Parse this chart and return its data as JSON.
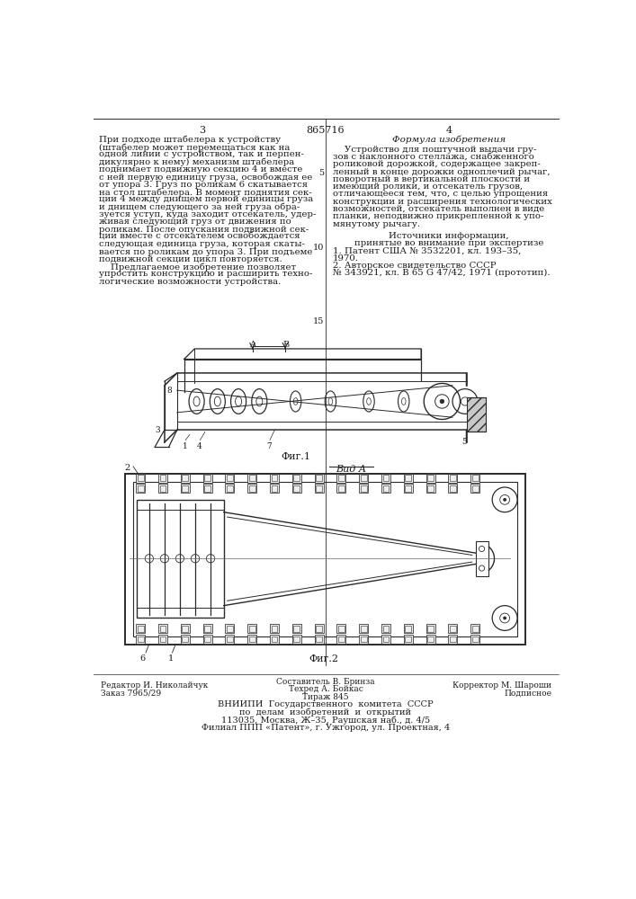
{
  "page_width": 7.07,
  "page_height": 10.0,
  "bg_color": "#ffffff",
  "patent_number": "865716",
  "page_left": "3",
  "page_right": "4",
  "left_column_text": [
    "При подходе штабелера к устройству",
    "(штабелер может перемещаться как на",
    "одной линии с устройством, так и перпен-",
    "дикулярно к нему) механизм штабелера",
    "поднимает подвижную секцию 4 и вместе",
    "с ней первую единицу груза, освобождая ее",
    "от упора 3. Груз по роликам 6 скатывается",
    "на стол штабелера. В момент поднятия сек-",
    "ции 4 между днищем первой единицы груза",
    "и днищем следующего за ней груза обра-",
    "зуется уступ, куда заходит отсекатель, удер-",
    "живая следующий груз от движения по",
    "роликам. После опускания подвижной сек-",
    "ции вместе с отсекателем освобождается",
    "следующая единица груза, которая скаты-",
    "вается по роликам до упора 3. При подъеме",
    "подвижной секции цикл повторяется.",
    "    Предлагаемое изобретение позволяет",
    "упростить конструкцию и расширить техно-",
    "логические возможности устройства."
  ],
  "right_column_header": "Формула изобретения",
  "right_column_text": [
    "    Устройство для поштучной выдачи гру-",
    "зов с наклонного стеллажа, снабженного",
    "роликовой дорожкой, содержащее закреп-",
    "ленный в конце дорожки одноплечий рычаг,",
    "поворотный в вертикальной плоскости и",
    "имеющий ролики, и отсекатель грузов,",
    "отличающееся тем, что, с целью упрощения",
    "конструкции и расширения технологических",
    "возможностей, отсекатель выполнен в виде",
    "планки, неподвижно прикрепленной к упо-",
    "мянутому рычагу."
  ],
  "sources_header": "Источники информации,",
  "sources_subheader": "принятые во внимание при экспертизе",
  "source1": "1. Патент США № 3532201, кл. 193–35,",
  "source1b": "1970.",
  "source2": "2. Авторское свидетельство СССР",
  "source2b": "№ 343921, кл. В 65 G 47/42, 1971 (прототип).",
  "fig1_caption": "Фиг.1",
  "fig2_caption": "Фиг.2",
  "vid_a_label": "Вид А",
  "line_number_5": "5",
  "line_number_10": "10",
  "line_number_15": "15",
  "footer_left1": "Редактор И. Николайчук",
  "footer_left2": "Заказ 7965/29",
  "footer_center1": "Составитель В. Бринза",
  "footer_center2": "Техред А. Бойкас",
  "footer_center3": "Тираж 845",
  "footer_right1": "Корректор М. Шароши",
  "footer_right2": "Подписное",
  "footer_vniip1": "ВНИИПИ  Государственного  комитета  СССР",
  "footer_vniip2": "по  делам  изобретений  и  открытий",
  "footer_vniip3": "113035, Москва, Ж–35, Раушская наб., д. 4/5",
  "footer_vniip4": "Филиал ППП «Патент», г. Ужгород, ул. Проектная, 4",
  "text_color": "#1a1a1a",
  "line_color": "#2a2a2a"
}
